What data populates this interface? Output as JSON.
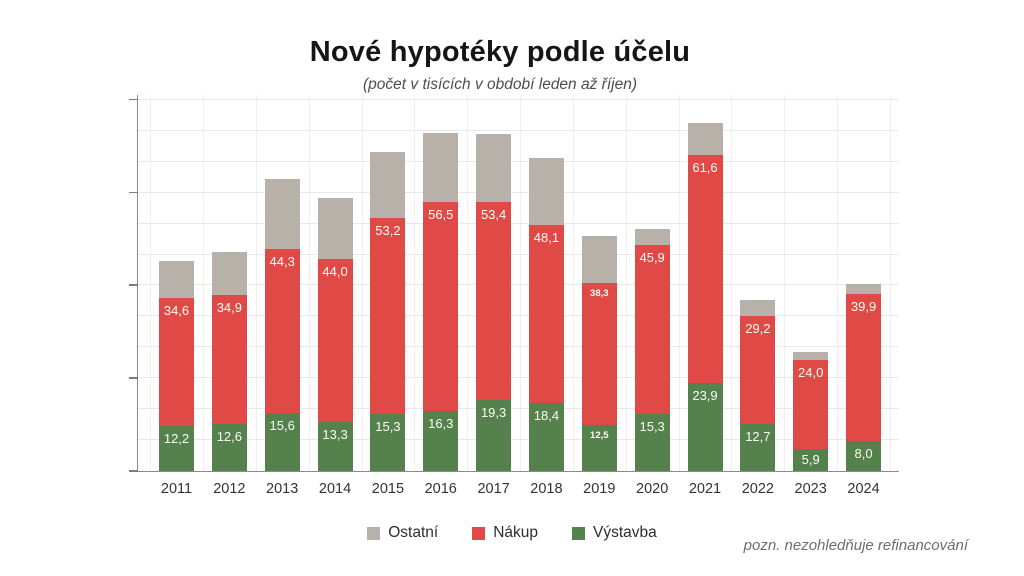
{
  "chart_data": {
    "type": "bar",
    "stacked": true,
    "title": "Nové hypotéky podle účelu",
    "subtitle": "(počet v tisících v období leden až říjen)",
    "note": "pozn. nezohledňuje refinancování",
    "categories": [
      "2011",
      "2012",
      "2013",
      "2014",
      "2015",
      "2016",
      "2017",
      "2018",
      "2019",
      "2020",
      "2021",
      "2022",
      "2023",
      "2024"
    ],
    "series": [
      {
        "key": "ostatni",
        "name": "Ostatní",
        "color": "#b7b1aa",
        "values": [
          9.9,
          11.7,
          19.1,
          16.4,
          17.6,
          18.5,
          18.3,
          18.0,
          12.6,
          4.3,
          8.5,
          4.3,
          2.2,
          2.7
        ],
        "labels": [
          "",
          "",
          "",
          "",
          "",
          "",
          "",
          "",
          "",
          "",
          "",
          "",
          "",
          ""
        ],
        "values_estimated": true
      },
      {
        "key": "nakup",
        "name": "Nákup",
        "color": "#e04a46",
        "values": [
          34.6,
          34.9,
          44.3,
          44.0,
          53.2,
          56.5,
          53.4,
          48.1,
          38.3,
          45.9,
          61.6,
          29.2,
          24.0,
          39.9
        ],
        "labels": [
          "34,6",
          "34,9",
          "44,3",
          "44,0",
          "53,2",
          "56,5",
          "53,4",
          "48,1",
          "38,3",
          "45,9",
          "61,6",
          "29,2",
          "24,0",
          "39,9"
        ]
      },
      {
        "key": "vystavba",
        "name": "Výstavba",
        "color": "#55814d",
        "values": [
          12.2,
          12.6,
          15.6,
          13.3,
          15.3,
          16.3,
          19.3,
          18.4,
          12.5,
          15.3,
          23.9,
          12.7,
          5.9,
          8.0
        ],
        "labels": [
          "12,2",
          "12,6",
          "15,6",
          "13,3",
          "15,3",
          "16,3",
          "19,3",
          "18,4",
          "12,5",
          "15,3",
          "23,9",
          "12,7",
          "5,9",
          "8,0"
        ]
      }
    ],
    "stack_order_bottom_to_top": [
      "vystavba",
      "nakup",
      "ostatni"
    ],
    "small_value_label_years": [
      "2019"
    ],
    "axes": {
      "y": {
        "min": 0,
        "max": 101.5,
        "tick_labels_shown": false,
        "gridlines": true
      },
      "x": {
        "tick_labels_shown": true
      }
    },
    "legend_position": "bottom"
  }
}
